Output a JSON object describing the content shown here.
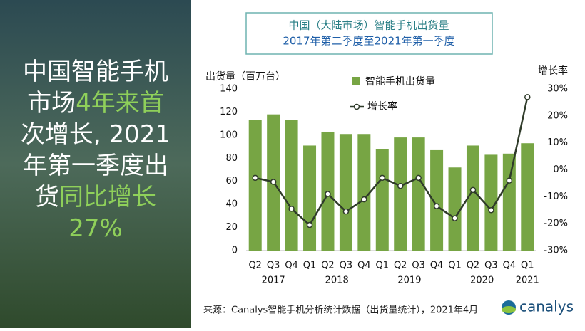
{
  "headline": {
    "lines": [
      [
        {
          "text": "中国智能手机",
          "color": "#ffffff"
        }
      ],
      [
        {
          "text": "市场",
          "color": "#ffffff"
        },
        {
          "text": "4年来首",
          "color": "#8fd05a"
        }
      ],
      [
        {
          "text": "次增长, 2021",
          "color": "#ffffff"
        }
      ],
      [
        {
          "text": "年第一季度出",
          "color": "#ffffff"
        }
      ],
      [
        {
          "text": "货",
          "color": "#ffffff"
        },
        {
          "text": "同比增长",
          "color": "#8fd05a"
        }
      ],
      [
        {
          "text": "27%",
          "color": "#8fd05a"
        }
      ]
    ]
  },
  "chart_data": {
    "type": "bar",
    "title": [
      "中国（大陆市场）智能手机出货量",
      "2017年第二季度至2021年第一季度"
    ],
    "y_label": "出货量（百万台）",
    "y2_label": "增长率",
    "categories": [
      "Q2",
      "Q3",
      "Q4",
      "Q1",
      "Q2",
      "Q3",
      "Q4",
      "Q1",
      "Q2",
      "Q3",
      "Q4",
      "Q1",
      "Q2",
      "Q3",
      "Q4",
      "Q1"
    ],
    "category_groups": [
      "2017",
      "2017",
      "2017",
      "2018",
      "2018",
      "2018",
      "2018",
      "2019",
      "2019",
      "2019",
      "2019",
      "2020",
      "2020",
      "2020",
      "2020",
      "2021"
    ],
    "series": [
      {
        "name": "智能手机出货量",
        "color": "#77a544",
        "values": [
          113,
          118,
          113,
          91,
          103,
          101,
          101,
          88,
          98,
          98,
          87,
          72,
          91,
          83,
          84,
          93
        ]
      },
      {
        "name": "增长率",
        "type": "line",
        "axis": "y2",
        "color": "#2f3b2a",
        "values": [
          -3,
          -4.5,
          -14.5,
          -20.5,
          -9,
          -15.5,
          -11,
          -3,
          -6,
          -3,
          -13.5,
          -18,
          -7.5,
          -15,
          -4,
          27
        ]
      }
    ],
    "ylim": [
      0,
      140
    ],
    "yticks": [
      0,
      20,
      40,
      60,
      80,
      100,
      120,
      140
    ],
    "y2lim": [
      -30,
      30
    ],
    "y2ticks": [
      {
        "value": -30,
        "label": "-30%"
      },
      {
        "value": -20,
        "label": "-20%"
      },
      {
        "value": -10,
        "label": "-10%"
      },
      {
        "value": 0,
        "label": "0%"
      },
      {
        "value": 10,
        "label": "10%"
      },
      {
        "value": 20,
        "label": "20%"
      },
      {
        "value": 30,
        "label": "30%"
      }
    ]
  },
  "source": "来源：Canalys智能手机分析统计数据（出货量统计），2021年4月",
  "logo": "canalys"
}
